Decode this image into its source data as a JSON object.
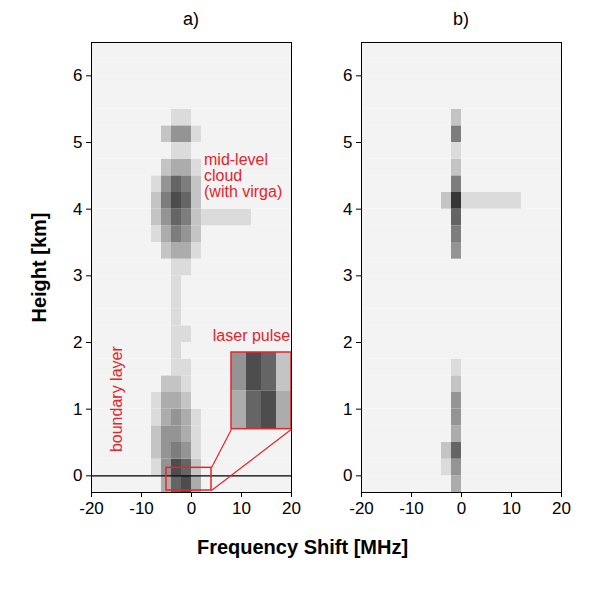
{
  "chart_data": [
    {
      "type": "heatmap",
      "title": "a)",
      "ylabel": "Height [km]",
      "xlim": [
        -20,
        20
      ],
      "xticks": [
        -20,
        -10,
        0,
        10,
        20
      ],
      "ylim": [
        -0.25,
        6.5
      ],
      "yticks": [
        0,
        1,
        2,
        3,
        4,
        5,
        6
      ],
      "hline": 0,
      "annotations": [
        "mid-level\ncloud\n(with virga)",
        "boundary layer",
        "laser pulse"
      ],
      "zlim": [
        0,
        9
      ],
      "x_bins": [
        -20,
        -18,
        -16,
        -14,
        -12,
        -10,
        -8,
        -6,
        -4,
        -2,
        0,
        2,
        4,
        6,
        8,
        10,
        12,
        14,
        16,
        18,
        20
      ],
      "y_bins": [
        -0.25,
        0,
        0.25,
        0.5,
        0.75,
        1,
        1.25,
        1.5,
        1.75,
        2,
        2.25,
        2.5,
        2.75,
        3,
        3.25,
        3.5,
        3.75,
        4,
        4.25,
        4.5,
        4.75,
        5,
        5.25,
        5.5,
        5.75,
        6,
        6.25,
        6.5
      ],
      "z": [
        [
          0,
          0,
          0,
          0,
          0,
          0,
          0,
          3,
          6,
          7,
          3,
          0,
          0,
          0,
          0,
          0,
          0,
          0,
          0,
          0
        ],
        [
          0,
          0,
          0,
          0,
          0,
          0,
          1,
          4,
          7,
          6,
          2,
          0,
          0,
          0,
          0,
          0,
          0,
          0,
          0,
          0
        ],
        [
          0,
          0,
          0,
          0,
          0,
          0,
          2,
          4,
          5,
          4,
          1,
          0,
          0,
          0,
          0,
          0,
          0,
          0,
          0,
          0
        ],
        [
          0,
          0,
          0,
          0,
          0,
          0,
          2,
          4,
          4,
          3,
          1,
          0,
          0,
          0,
          0,
          0,
          0,
          0,
          0,
          0
        ],
        [
          0,
          0,
          0,
          0,
          0,
          0,
          1,
          3,
          4,
          3,
          1,
          0,
          0,
          0,
          0,
          0,
          0,
          0,
          0,
          0
        ],
        [
          0,
          0,
          0,
          0,
          0,
          0,
          1,
          3,
          3,
          2,
          0,
          0,
          0,
          0,
          0,
          0,
          0,
          0,
          0,
          0
        ],
        [
          0,
          0,
          0,
          0,
          0,
          0,
          0,
          2,
          2,
          1,
          0,
          0,
          0,
          0,
          0,
          0,
          0,
          0,
          0,
          0
        ],
        [
          0,
          0,
          0,
          0,
          0,
          0,
          0,
          0,
          1,
          1,
          0,
          0,
          0,
          0,
          0,
          0,
          0,
          0,
          0,
          0
        ],
        [
          0,
          0,
          0,
          0,
          0,
          0,
          0,
          0,
          1,
          0,
          0,
          0,
          0,
          0,
          0,
          0,
          0,
          0,
          0,
          0
        ],
        [
          0,
          0,
          0,
          0,
          0,
          0,
          0,
          0,
          1,
          1,
          0,
          0,
          0,
          0,
          0,
          0,
          0,
          0,
          0,
          0
        ],
        [
          0,
          0,
          0,
          0,
          0,
          0,
          0,
          0,
          1,
          0,
          0,
          0,
          0,
          0,
          0,
          0,
          0,
          0,
          0,
          0
        ],
        [
          0,
          0,
          0,
          0,
          0,
          0,
          0,
          0,
          1,
          0,
          0,
          0,
          0,
          0,
          0,
          0,
          0,
          0,
          0,
          0
        ],
        [
          0,
          0,
          0,
          0,
          0,
          0,
          0,
          0,
          1,
          0,
          0,
          0,
          0,
          0,
          0,
          0,
          0,
          0,
          0,
          0
        ],
        [
          0,
          0,
          0,
          0,
          0,
          0,
          0,
          0,
          1,
          1,
          0,
          0,
          0,
          0,
          0,
          0,
          0,
          0,
          0,
          0
        ],
        [
          0,
          0,
          0,
          0,
          0,
          0,
          0,
          2,
          3,
          3,
          1,
          0,
          0,
          0,
          0,
          0,
          0,
          0,
          0,
          0
        ],
        [
          0,
          0,
          0,
          0,
          0,
          0,
          1,
          3,
          5,
          4,
          2,
          0,
          0,
          0,
          0,
          0,
          0,
          0,
          0,
          0
        ],
        [
          0,
          0,
          0,
          0,
          0,
          0,
          2,
          4,
          6,
          5,
          2,
          1,
          1,
          1,
          1,
          1,
          0,
          0,
          0,
          0
        ],
        [
          0,
          0,
          0,
          0,
          0,
          0,
          2,
          5,
          7,
          6,
          2,
          0,
          0,
          0,
          0,
          0,
          0,
          0,
          0,
          0
        ],
        [
          0,
          0,
          0,
          0,
          0,
          0,
          1,
          4,
          6,
          5,
          2,
          0,
          0,
          0,
          0,
          0,
          0,
          0,
          0,
          0
        ],
        [
          0,
          0,
          0,
          0,
          0,
          0,
          0,
          2,
          3,
          3,
          1,
          0,
          0,
          0,
          0,
          0,
          0,
          0,
          0,
          0
        ],
        [
          0,
          0,
          0,
          0,
          0,
          0,
          0,
          0,
          1,
          1,
          0,
          0,
          0,
          0,
          0,
          0,
          0,
          0,
          0,
          0
        ],
        [
          0,
          0,
          0,
          0,
          0,
          0,
          0,
          2,
          4,
          4,
          1,
          0,
          0,
          0,
          0,
          0,
          0,
          0,
          0,
          0
        ],
        [
          0,
          0,
          0,
          0,
          0,
          0,
          0,
          0,
          1,
          1,
          0,
          0,
          0,
          0,
          0,
          0,
          0,
          0,
          0,
          0
        ],
        [
          0,
          0,
          0,
          0,
          0,
          0,
          0,
          0,
          0,
          0,
          0,
          0,
          0,
          0,
          0,
          0,
          0,
          0,
          0,
          0
        ],
        [
          0,
          0,
          0,
          0,
          0,
          0,
          0,
          0,
          0,
          0,
          0,
          0,
          0,
          0,
          0,
          0,
          0,
          0,
          0,
          0
        ],
        [
          0,
          0,
          0,
          0,
          0,
          0,
          0,
          0,
          0,
          0,
          0,
          0,
          0,
          0,
          0,
          0,
          0,
          0,
          0,
          0
        ],
        [
          0,
          0,
          0,
          0,
          0,
          0,
          0,
          0,
          0,
          0,
          0,
          0,
          0,
          0,
          0,
          0,
          0,
          0,
          0,
          0
        ]
      ]
    },
    {
      "type": "heatmap",
      "title": "b)",
      "xlim": [
        -20,
        20
      ],
      "xticks": [
        -20,
        -10,
        0,
        10,
        20
      ],
      "ylim": [
        -0.25,
        6.5
      ],
      "yticks": [
        0,
        1,
        2,
        3,
        4,
        5,
        6
      ],
      "zlim": [
        0,
        9
      ],
      "x_bins": [
        -20,
        -18,
        -16,
        -14,
        -12,
        -10,
        -8,
        -6,
        -4,
        -2,
        0,
        2,
        4,
        6,
        8,
        10,
        12,
        14,
        16,
        18,
        20
      ],
      "y_bins": [
        -0.25,
        0,
        0.25,
        0.5,
        0.75,
        1,
        1.25,
        1.5,
        1.75,
        2,
        2.25,
        2.5,
        2.75,
        3,
        3.25,
        3.5,
        3.75,
        4,
        4.25,
        4.5,
        4.75,
        5,
        5.25,
        5.5,
        5.75,
        6,
        6.25,
        6.5
      ],
      "z": [
        [
          0,
          0,
          0,
          0,
          0,
          0,
          0,
          0,
          0,
          3,
          0,
          0,
          0,
          0,
          0,
          0,
          0,
          0,
          0,
          0
        ],
        [
          0,
          0,
          0,
          0,
          0,
          0,
          0,
          0,
          1,
          4,
          0,
          0,
          0,
          0,
          0,
          0,
          0,
          0,
          0,
          0
        ],
        [
          0,
          0,
          0,
          0,
          0,
          0,
          0,
          0,
          2,
          6,
          0,
          0,
          0,
          0,
          0,
          0,
          0,
          0,
          0,
          0
        ],
        [
          0,
          0,
          0,
          0,
          0,
          0,
          0,
          0,
          0,
          3,
          0,
          0,
          0,
          0,
          0,
          0,
          0,
          0,
          0,
          0
        ],
        [
          0,
          0,
          0,
          0,
          0,
          0,
          0,
          0,
          0,
          4,
          0,
          0,
          0,
          0,
          0,
          0,
          0,
          0,
          0,
          0
        ],
        [
          0,
          0,
          0,
          0,
          0,
          0,
          0,
          0,
          0,
          4,
          0,
          0,
          0,
          0,
          0,
          0,
          0,
          0,
          0,
          0
        ],
        [
          0,
          0,
          0,
          0,
          0,
          0,
          0,
          0,
          0,
          2,
          0,
          0,
          0,
          0,
          0,
          0,
          0,
          0,
          0,
          0
        ],
        [
          0,
          0,
          0,
          0,
          0,
          0,
          0,
          0,
          0,
          1,
          0,
          0,
          0,
          0,
          0,
          0,
          0,
          0,
          0,
          0
        ],
        [
          0,
          0,
          0,
          0,
          0,
          0,
          0,
          0,
          0,
          0,
          0,
          0,
          0,
          0,
          0,
          0,
          0,
          0,
          0,
          0
        ],
        [
          0,
          0,
          0,
          0,
          0,
          0,
          0,
          0,
          0,
          0,
          0,
          0,
          0,
          0,
          0,
          0,
          0,
          0,
          0,
          0
        ],
        [
          0,
          0,
          0,
          0,
          0,
          0,
          0,
          0,
          0,
          0,
          0,
          0,
          0,
          0,
          0,
          0,
          0,
          0,
          0,
          0
        ],
        [
          0,
          0,
          0,
          0,
          0,
          0,
          0,
          0,
          0,
          0,
          0,
          0,
          0,
          0,
          0,
          0,
          0,
          0,
          0,
          0
        ],
        [
          0,
          0,
          0,
          0,
          0,
          0,
          0,
          0,
          0,
          0,
          0,
          0,
          0,
          0,
          0,
          0,
          0,
          0,
          0,
          0
        ],
        [
          0,
          0,
          0,
          0,
          0,
          0,
          0,
          0,
          0,
          0,
          0,
          0,
          0,
          0,
          0,
          0,
          0,
          0,
          0,
          0
        ],
        [
          0,
          0,
          0,
          0,
          0,
          0,
          0,
          0,
          0,
          4,
          0,
          0,
          0,
          0,
          0,
          0,
          0,
          0,
          0,
          0
        ],
        [
          0,
          0,
          0,
          0,
          0,
          0,
          0,
          0,
          0,
          5,
          0,
          0,
          0,
          0,
          0,
          0,
          0,
          0,
          0,
          0
        ],
        [
          0,
          0,
          0,
          0,
          0,
          0,
          0,
          0,
          0,
          6,
          0,
          0,
          0,
          0,
          0,
          0,
          0,
          0,
          0,
          0
        ],
        [
          0,
          0,
          0,
          0,
          0,
          0,
          0,
          0,
          2,
          8,
          1,
          1,
          1,
          1,
          1,
          1,
          0,
          0,
          0,
          0
        ],
        [
          0,
          0,
          0,
          0,
          0,
          0,
          0,
          0,
          0,
          5,
          0,
          0,
          0,
          0,
          0,
          0,
          0,
          0,
          0,
          0
        ],
        [
          0,
          0,
          0,
          0,
          0,
          0,
          0,
          0,
          0,
          2,
          0,
          0,
          0,
          0,
          0,
          0,
          0,
          0,
          0,
          0
        ],
        [
          0,
          0,
          0,
          0,
          0,
          0,
          0,
          0,
          0,
          1,
          0,
          0,
          0,
          0,
          0,
          0,
          0,
          0,
          0,
          0
        ],
        [
          0,
          0,
          0,
          0,
          0,
          0,
          0,
          0,
          0,
          5,
          0,
          0,
          0,
          0,
          0,
          0,
          0,
          0,
          0,
          0
        ],
        [
          0,
          0,
          0,
          0,
          0,
          0,
          0,
          0,
          0,
          2,
          0,
          0,
          0,
          0,
          0,
          0,
          0,
          0,
          0,
          0
        ],
        [
          0,
          0,
          0,
          0,
          0,
          0,
          0,
          0,
          0,
          0,
          0,
          0,
          0,
          0,
          0,
          0,
          0,
          0,
          0,
          0
        ],
        [
          0,
          0,
          0,
          0,
          0,
          0,
          0,
          0,
          0,
          0,
          0,
          0,
          0,
          0,
          0,
          0,
          0,
          0,
          0,
          0
        ],
        [
          0,
          0,
          0,
          0,
          0,
          0,
          0,
          0,
          0,
          0,
          0,
          0,
          0,
          0,
          0,
          0,
          0,
          0,
          0,
          0
        ],
        [
          0,
          0,
          0,
          0,
          0,
          0,
          0,
          0,
          0,
          0,
          0,
          0,
          0,
          0,
          0,
          0,
          0,
          0,
          0,
          0
        ]
      ]
    }
  ],
  "xlabel": "Frequency Shift [MHz]"
}
